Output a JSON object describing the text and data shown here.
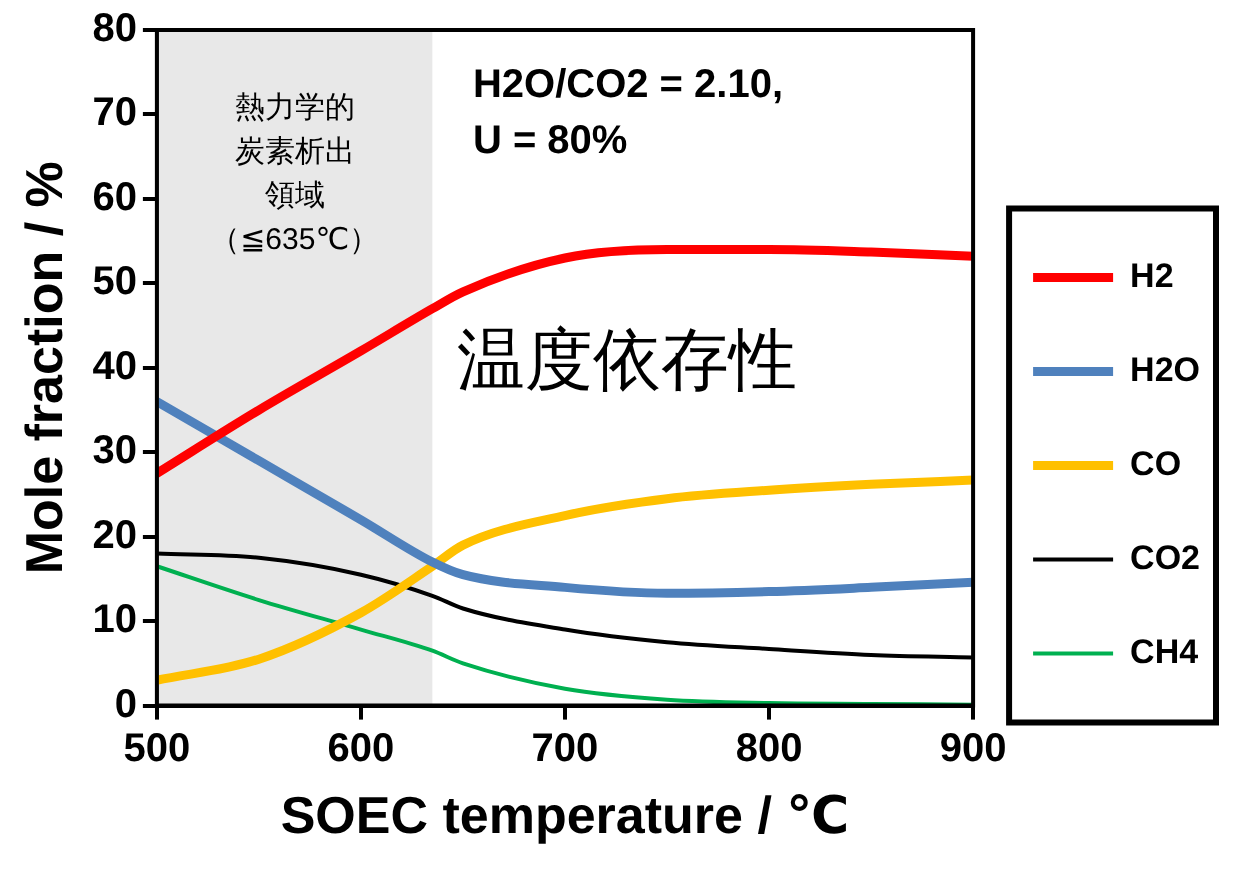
{
  "chart_data": {
    "type": "line",
    "xlabel": "SOEC temperature / ℃",
    "ylabel": "Mole fraction / %",
    "x": [
      500,
      550,
      600,
      635,
      650,
      700,
      750,
      800,
      850,
      900
    ],
    "series": [
      {
        "name": "H2",
        "color": "#ff0000",
        "values": [
          27.5,
          35,
          42,
          47,
          49,
          53,
          54,
          54,
          53.7,
          53.2
        ]
      },
      {
        "name": "H2O",
        "color": "#4f81bd",
        "values": [
          36,
          29,
          22,
          17,
          15.5,
          14,
          13.3,
          13.5,
          14,
          14.6
        ]
      },
      {
        "name": "CO",
        "color": "#ffc000",
        "values": [
          3,
          5.5,
          11,
          16.5,
          19,
          22.5,
          24.5,
          25.5,
          26.2,
          26.7
        ]
      },
      {
        "name": "CO2",
        "color": "#000000",
        "values": [
          18,
          17.5,
          15.5,
          13,
          11.5,
          9,
          7.5,
          6.7,
          6,
          5.7
        ]
      },
      {
        "name": "CH4",
        "color": "#00b050",
        "values": [
          16.5,
          12.5,
          9,
          6.5,
          5,
          2,
          0.7,
          0.3,
          0.2,
          0.1
        ]
      }
    ],
    "xlim": [
      500,
      900
    ],
    "xticks": [
      500,
      600,
      700,
      800,
      900
    ],
    "ylim": [
      0,
      80
    ],
    "yticks": [
      0,
      10,
      20,
      30,
      40,
      50,
      60,
      70,
      80
    ],
    "grid": false,
    "legend": "right",
    "marker": "none",
    "line_style": "solid",
    "bands": [
      {
        "axis": "x",
        "from": 500,
        "to": 635,
        "label": "熱力学的炭素析出領域（≦635℃）",
        "color": "#d9d9d9"
      }
    ],
    "annotations": [
      "H2O/CO2 = 2.10, U = 80%",
      "温度依存性"
    ]
  }
}
